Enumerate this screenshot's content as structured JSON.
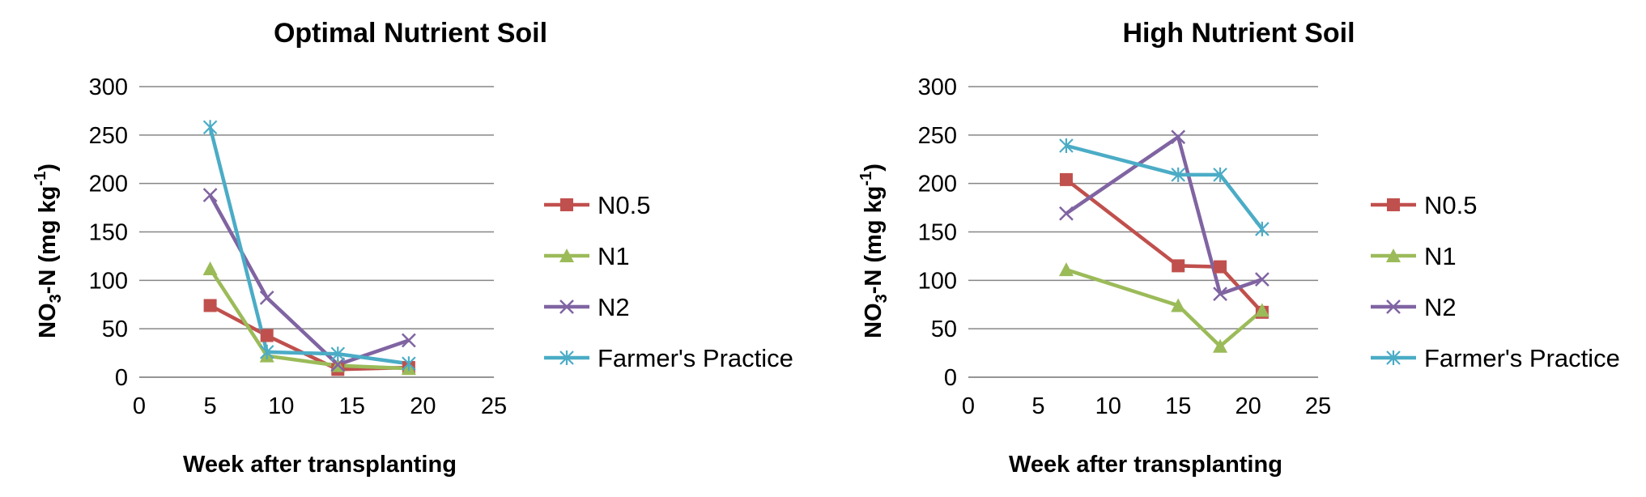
{
  "chart_data": [
    {
      "type": "line",
      "title": "Optimal Nutrient Soil",
      "xlabel": "Week after transplanting",
      "ylabel_main": "NO",
      "ylabel_sub": "3",
      "ylabel_mid": "-N (mg kg",
      "ylabel_sup": "-1",
      "ylabel_end": ")",
      "xlim": [
        0,
        25
      ],
      "ylim": [
        0,
        300
      ],
      "xticks": [
        "0",
        "5",
        "10",
        "15",
        "20",
        "25"
      ],
      "yticks": [
        "0",
        "50",
        "100",
        "150",
        "200",
        "250",
        "300"
      ],
      "grid": "horizontal",
      "legend_position": "right",
      "series": [
        {
          "name": "N0.5",
          "color": "#C0504D",
          "marker": "square",
          "x": [
            5,
            9,
            14,
            19
          ],
          "y": [
            74,
            43,
            8,
            10
          ]
        },
        {
          "name": "N1",
          "color": "#9BBB59",
          "marker": "triangle",
          "x": [
            5,
            9,
            14,
            19
          ],
          "y": [
            112,
            22,
            12,
            9
          ]
        },
        {
          "name": "N2",
          "color": "#8064A2",
          "marker": "x",
          "x": [
            5,
            9,
            14,
            19
          ],
          "y": [
            188,
            82,
            13,
            38
          ]
        },
        {
          "name": "Farmer's Practice",
          "color": "#4BACC6",
          "marker": "star",
          "x": [
            5,
            9,
            14,
            19
          ],
          "y": [
            258,
            26,
            24,
            14
          ]
        }
      ]
    },
    {
      "type": "line",
      "title": "High Nutrient Soil",
      "xlabel": "Week after transplanting",
      "ylabel_main": "NO",
      "ylabel_sub": "3",
      "ylabel_mid": "-N (mg kg",
      "ylabel_sup": "-1",
      "ylabel_end": ")",
      "xlim": [
        0,
        25
      ],
      "ylim": [
        0,
        300
      ],
      "xticks": [
        "0",
        "5",
        "10",
        "15",
        "20",
        "25"
      ],
      "yticks": [
        "0",
        "50",
        "100",
        "150",
        "200",
        "250",
        "300"
      ],
      "grid": "horizontal",
      "legend_position": "right",
      "series": [
        {
          "name": "N0.5",
          "color": "#C0504D",
          "marker": "square",
          "x": [
            7,
            15,
            18,
            21
          ],
          "y": [
            204,
            115,
            114,
            67
          ]
        },
        {
          "name": "N1",
          "color": "#9BBB59",
          "marker": "triangle",
          "x": [
            7,
            15,
            18,
            21
          ],
          "y": [
            111,
            74,
            32,
            69
          ]
        },
        {
          "name": "N2",
          "color": "#8064A2",
          "marker": "x",
          "x": [
            7,
            15,
            18,
            21
          ],
          "y": [
            169,
            248,
            86,
            101
          ]
        },
        {
          "name": "Farmer's Practice",
          "color": "#4BACC6",
          "marker": "star",
          "x": [
            7,
            15,
            18,
            21
          ],
          "y": [
            239,
            209,
            209,
            153
          ]
        }
      ]
    }
  ]
}
